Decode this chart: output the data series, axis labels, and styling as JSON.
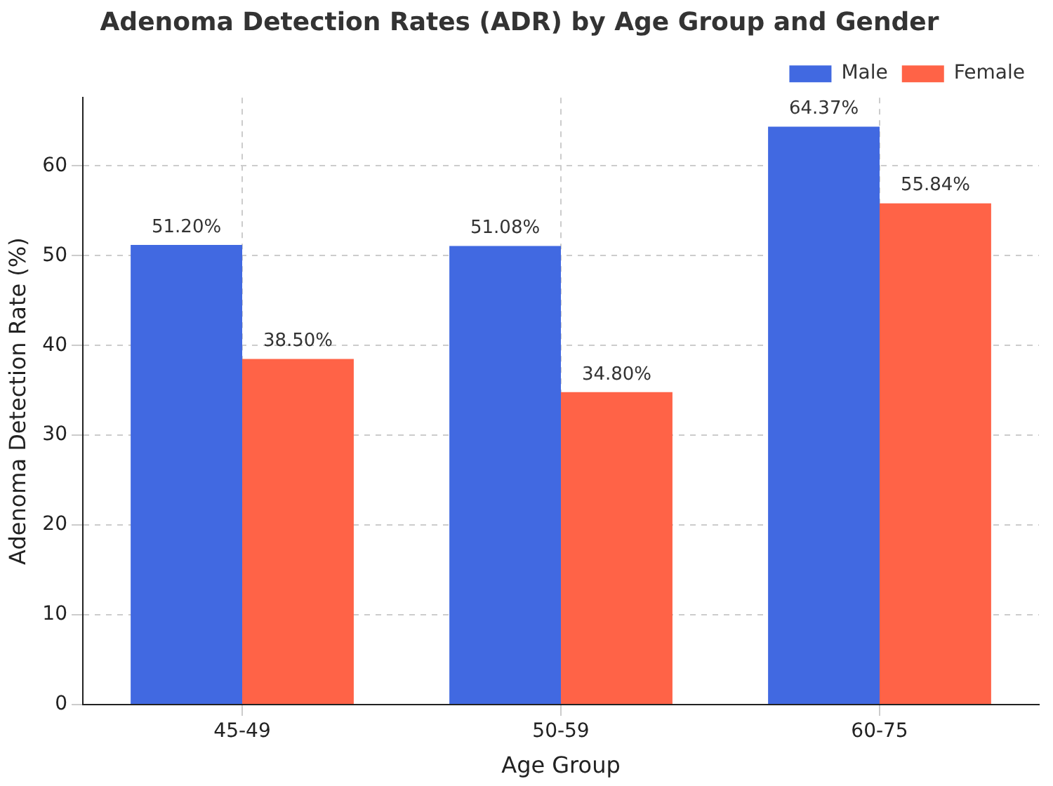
{
  "chart_data": {
    "type": "bar",
    "title": "Adenoma Detection Rates (ADR) by Age Group and Gender",
    "xlabel": "Age Group",
    "ylabel": "Adenoma Detection Rate (%)",
    "categories": [
      "45-49",
      "50-59",
      "60-75"
    ],
    "series": [
      {
        "name": "Male",
        "color": "#4169e1",
        "values": [
          51.2,
          51.08,
          64.37
        ],
        "value_labels": [
          "51.20%",
          "51.08%",
          "64.37%"
        ]
      },
      {
        "name": "Female",
        "color": "#ff6347",
        "values": [
          38.5,
          34.8,
          55.84
        ],
        "value_labels": [
          "38.50%",
          "34.80%",
          "55.84%"
        ]
      }
    ],
    "ylim": [
      0,
      67.6
    ],
    "yticks": [
      0,
      10,
      20,
      30,
      40,
      50,
      60
    ],
    "grid": true,
    "legend": "top right"
  }
}
